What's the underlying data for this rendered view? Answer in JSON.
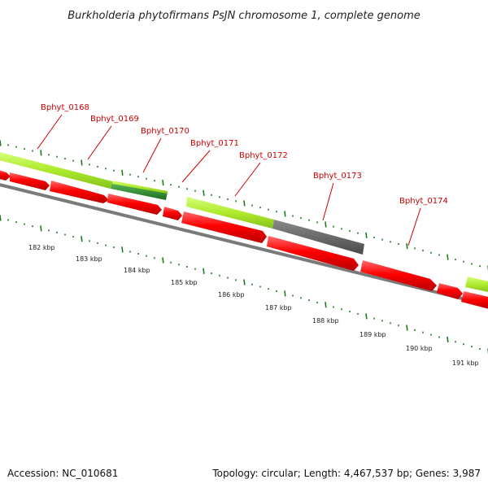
{
  "title": "Burkholderia phytofirmans PsJN chromosome 1, complete genome",
  "gene_labels": [
    "Bphyt_0168",
    "Bphyt_0169",
    "Bphyt_0170",
    "Bphyt_0171",
    "Bphyt_0172",
    "Bphyt_0173",
    "Bphyt_0174"
  ],
  "kbp_labels": [
    "182 kbp",
    "183 kbp",
    "184 kbp",
    "185 kbp",
    "186 kbp",
    "187 kbp",
    "188 kbp",
    "189 kbp",
    "190 kbp",
    "191 kbp"
  ],
  "footer": {
    "accession": "Accession: NC_010681",
    "summary": "Topology: circular; Length: 4,467,537 bp; Genes: 3,987"
  },
  "colors": {
    "cds_red": "#ff0000",
    "gene_lightgreen": "#b5f03c",
    "gene_darkgreen": "#2f8f2f",
    "gene_gray": "#666666",
    "backbone_gray": "#7a7a7a",
    "tick_green": "#1f7a1f",
    "label_red": "#cc0000"
  }
}
